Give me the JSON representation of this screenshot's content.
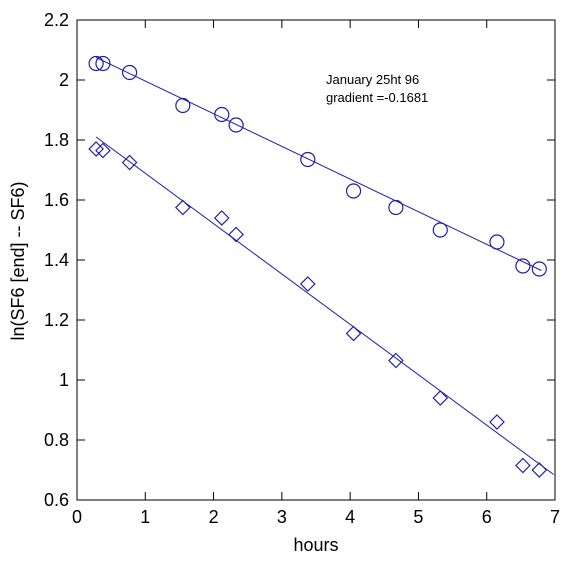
{
  "chart_data": {
    "type": "scatter",
    "xlabel": "hours",
    "ylabel": "ln(SF6 [end] -- SF6)",
    "xlim": [
      0,
      7
    ],
    "ylim": [
      0.6,
      2.2
    ],
    "xticks": [
      "0",
      "1",
      "2",
      "3",
      "4",
      "5",
      "6",
      "7"
    ],
    "yticks": [
      "0.6",
      "0.8",
      "1",
      "1.2",
      "1.4",
      "1.6",
      "1.8",
      "2",
      "2.2"
    ],
    "grid": false,
    "annotations": [
      "January 25ht 96",
      "gradient =-0.1681"
    ],
    "series": [
      {
        "marker": "circle",
        "color": "#1f1fa8",
        "x": [
          0.28,
          0.38,
          0.77,
          1.55,
          2.12,
          2.33,
          3.38,
          4.05,
          4.67,
          5.32,
          6.15,
          6.53,
          6.77
        ],
        "y": [
          2.055,
          2.055,
          2.025,
          1.915,
          1.885,
          1.85,
          1.735,
          1.63,
          1.575,
          1.5,
          1.46,
          1.38,
          1.37
        ],
        "fit": {
          "x": [
            0.28,
            6.8
          ],
          "y": [
            2.075,
            1.365
          ]
        }
      },
      {
        "marker": "diamond",
        "color": "#1f1fa8",
        "x": [
          0.28,
          0.38,
          0.77,
          1.55,
          2.12,
          2.33,
          3.38,
          4.05,
          4.67,
          5.32,
          6.15,
          6.53,
          6.77
        ],
        "y": [
          1.77,
          1.765,
          1.725,
          1.575,
          1.54,
          1.485,
          1.32,
          1.155,
          1.065,
          0.94,
          0.86,
          0.715,
          0.7
        ],
        "fit": {
          "x": [
            0.28,
            6.98
          ],
          "y": [
            1.81,
            0.685
          ]
        }
      }
    ]
  }
}
